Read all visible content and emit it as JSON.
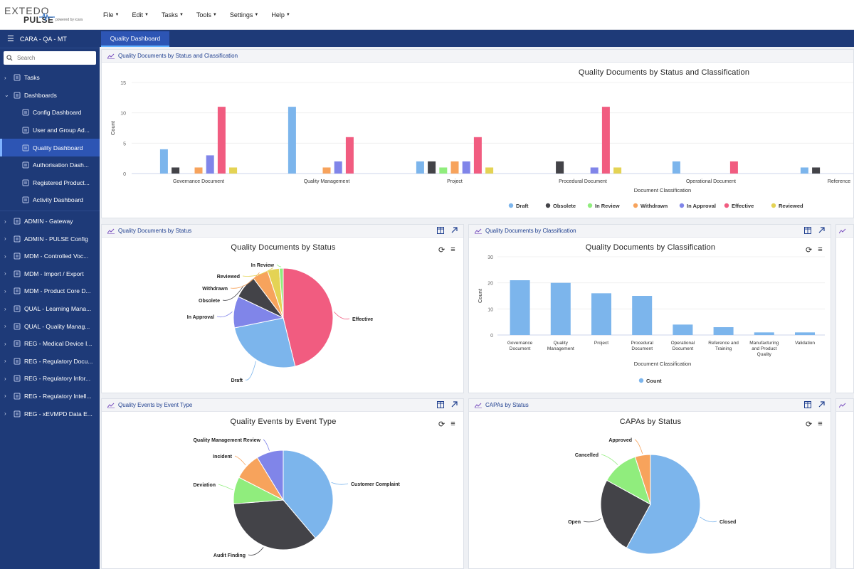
{
  "app": {
    "logo_main": "EXTEDO",
    "logo_sub": "PULSE",
    "logo_tag": "powered by icara",
    "menus": [
      "File",
      "Edit",
      "Tasks",
      "Tools",
      "Settings",
      "Help"
    ]
  },
  "sidebar": {
    "header": "CARA - QA - MT",
    "search_placeholder": "Search",
    "items": [
      {
        "label": "Tasks",
        "type": "group"
      },
      {
        "label": "Dashboards",
        "type": "group-open"
      },
      {
        "label": "Config Dashboard",
        "type": "sub"
      },
      {
        "label": "User and Group Ad...",
        "type": "sub"
      },
      {
        "label": "Quality Dashboard",
        "type": "sub-active"
      },
      {
        "label": "Authorisation Dash...",
        "type": "sub"
      },
      {
        "label": "Registered Product...",
        "type": "sub"
      },
      {
        "label": "Activity Dashboard",
        "type": "sub"
      },
      {
        "label": "ADMIN - Gateway",
        "type": "group"
      },
      {
        "label": "ADMIN - PULSE Config",
        "type": "group"
      },
      {
        "label": "MDM - Controlled Voc...",
        "type": "group"
      },
      {
        "label": "MDM - Import / Export",
        "type": "group"
      },
      {
        "label": "MDM - Product Core D...",
        "type": "group"
      },
      {
        "label": "QUAL - Learning Mana...",
        "type": "group"
      },
      {
        "label": "QUAL - Quality Manag...",
        "type": "group"
      },
      {
        "label": "REG - Medical Device I...",
        "type": "group"
      },
      {
        "label": "REG - Regulatory Docu...",
        "type": "group"
      },
      {
        "label": "REG - Regulatory Infor...",
        "type": "group"
      },
      {
        "label": "REG - Regulatory Intell...",
        "type": "group"
      },
      {
        "label": "REG - xEVMPD Data E...",
        "type": "group"
      }
    ]
  },
  "tab": {
    "label": "Quality Dashboard"
  },
  "colors": {
    "Draft": "#7cb5ec",
    "Obsolete": "#434348",
    "In Review": "#90ed7d",
    "Withdrawn": "#f7a35c",
    "In Approval": "#8085e9",
    "Effective": "#f15c80",
    "Reviewed": "#e4d354"
  },
  "panels": {
    "p1": {
      "header": "Quality Documents by Status and Classification"
    },
    "p2": {
      "header": "Quality Documents by Status"
    },
    "p3": {
      "header": "Quality Documents by Classification"
    },
    "p4": {
      "header": "Quality Events by Event Type"
    },
    "p5": {
      "header": "CAPAs by Status"
    }
  },
  "chart_data": [
    {
      "id": "c1",
      "type": "bar",
      "title": "Quality Documents by Status and Classification",
      "xlabel": "Document Classification",
      "ylabel": "Count",
      "ylim": [
        0,
        15
      ],
      "yticks": [
        0,
        5,
        10,
        15
      ],
      "categories": [
        "Governance Document",
        "Quality Management",
        "Project",
        "Procedural Document",
        "Operational Document",
        "Reference"
      ],
      "series": [
        {
          "name": "Draft",
          "values": [
            4,
            11,
            2,
            0,
            2,
            1
          ]
        },
        {
          "name": "Obsolete",
          "values": [
            1,
            0,
            2,
            2,
            0,
            1
          ]
        },
        {
          "name": "In Review",
          "values": [
            0,
            0,
            1,
            0,
            0,
            0
          ]
        },
        {
          "name": "Withdrawn",
          "values": [
            1,
            1,
            2,
            0,
            0,
            0
          ]
        },
        {
          "name": "In Approval",
          "values": [
            3,
            2,
            2,
            1,
            0,
            0
          ]
        },
        {
          "name": "Effective",
          "values": [
            11,
            6,
            6,
            11,
            2,
            0
          ]
        },
        {
          "name": "Reviewed",
          "values": [
            1,
            0,
            1,
            1,
            0,
            0
          ]
        }
      ],
      "legend": [
        "Draft",
        "Obsolete",
        "In Review",
        "Withdrawn",
        "In Approval",
        "Effective",
        "Reviewed"
      ]
    },
    {
      "id": "c2",
      "type": "pie",
      "title": "Quality Documents by Status",
      "labels": [
        "Effective",
        "Draft",
        "In Approval",
        "Obsolete",
        "Withdrawn",
        "Reviewed",
        "In Review"
      ],
      "values": [
        36,
        20,
        8,
        6,
        4,
        3,
        1
      ]
    },
    {
      "id": "c3",
      "type": "bar",
      "title": "Quality Documents by Classification",
      "xlabel": "Document Classification",
      "ylabel": "Count",
      "ylim": [
        0,
        30
      ],
      "yticks": [
        0,
        10,
        20,
        30
      ],
      "categories": [
        "Governance Document",
        "Quality Management",
        "Project",
        "Procedural Document",
        "Operational Document",
        "Reference and Training",
        "Manufacturing and Product Quality",
        "Validation"
      ],
      "values": [
        21,
        20,
        16,
        15,
        4,
        3,
        1,
        1
      ],
      "legend": [
        "Count"
      ]
    },
    {
      "id": "c4",
      "type": "pie",
      "title": "Quality Events by Event Type",
      "labels": [
        "Customer Complaint",
        "Audit Finding",
        "Deviation",
        "Incident",
        "Quality Management Review"
      ],
      "values": [
        40,
        36,
        9,
        9,
        9
      ]
    },
    {
      "id": "c5",
      "type": "pie",
      "title": "CAPAs by Status",
      "labels": [
        "Closed",
        "Open",
        "Cancelled",
        "Approved"
      ],
      "values": [
        58,
        25,
        12,
        5
      ]
    }
  ]
}
